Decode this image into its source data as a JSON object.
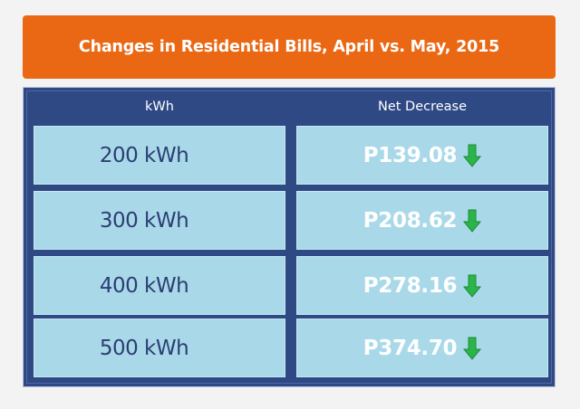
{
  "title": "Changes in Residential Bills, April vs. May, 2015",
  "chart_data": {
    "type": "table",
    "title": "Changes in Residential Bills, April vs. May, 2015",
    "columns": [
      "kWh",
      "Net Decrease"
    ],
    "rows": [
      {
        "kwh": "200 kWh",
        "net_decrease": "P139.08",
        "value": 139.08
      },
      {
        "kwh": "300 kWh",
        "net_decrease": "P208.62",
        "value": 208.62
      },
      {
        "kwh": "400 kWh",
        "net_decrease": "P278.16",
        "value": 278.16
      },
      {
        "kwh": "500 kWh",
        "net_decrease": "P374.70",
        "value": 374.7
      }
    ]
  },
  "colors": {
    "title_bg": "#ea6814",
    "panel_bg": "#2f4985",
    "cell_bg": "#a9d9e9",
    "kwh_text": "#2c3e73",
    "arrow": "#2bb44a"
  },
  "icons": {
    "decrease": "down-arrow-icon"
  }
}
